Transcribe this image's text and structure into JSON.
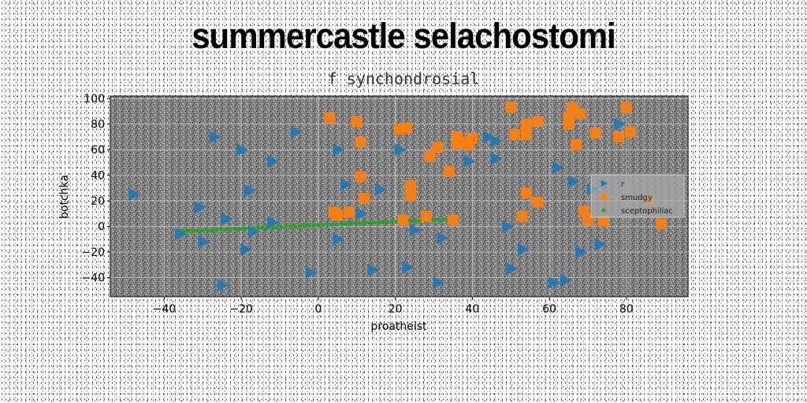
{
  "title": "summercastle selachostomi",
  "subtitle": "f synchondrosial",
  "chart_data": {
    "type": "scatter",
    "xlabel": "proatheist",
    "ylabel": "botchka",
    "xlim": [
      -54,
      96
    ],
    "ylim": [
      -55,
      102
    ],
    "xticks": [
      -40,
      -20,
      0,
      20,
      40,
      60,
      80
    ],
    "yticks": [
      -40,
      -20,
      0,
      20,
      40,
      60,
      80,
      100
    ],
    "grid": true,
    "legend_position": "right",
    "background": "#808080",
    "series": [
      {
        "name": "r",
        "color": "#1f77b4",
        "marker": "triangle-right",
        "points": [
          [
            -48,
            25
          ],
          [
            -36,
            -6
          ],
          [
            -30,
            -12
          ],
          [
            -31,
            15
          ],
          [
            -27,
            70
          ],
          [
            -24,
            6
          ],
          [
            -25,
            -46
          ],
          [
            -20,
            60
          ],
          [
            -18,
            28
          ],
          [
            -19,
            -18
          ],
          [
            -17,
            -4
          ],
          [
            -12,
            51
          ],
          [
            -12,
            3
          ],
          [
            -6,
            74
          ],
          [
            -2,
            -36
          ],
          [
            5,
            60
          ],
          [
            5,
            -10
          ],
          [
            7,
            33
          ],
          [
            11,
            10
          ],
          [
            14,
            -34
          ],
          [
            16,
            29
          ],
          [
            21,
            60
          ],
          [
            23,
            -32
          ],
          [
            25,
            -3
          ],
          [
            31,
            -44
          ],
          [
            32,
            -9
          ],
          [
            39,
            51
          ],
          [
            44,
            70
          ],
          [
            46,
            67
          ],
          [
            46,
            53
          ],
          [
            49,
            0
          ],
          [
            50,
            -33
          ],
          [
            53,
            -18
          ],
          [
            62,
            46
          ],
          [
            61,
            -44
          ],
          [
            64,
            -42
          ],
          [
            66,
            35
          ],
          [
            68,
            -20
          ],
          [
            71,
            29
          ],
          [
            73,
            -14
          ],
          [
            78,
            80
          ]
        ]
      },
      {
        "name": "smudgy",
        "color": "#ff7f0e",
        "marker": "square",
        "points": [
          [
            3,
            85
          ],
          [
            5,
            9
          ],
          [
            4,
            11
          ],
          [
            8,
            11
          ],
          [
            10,
            82
          ],
          [
            11,
            66
          ],
          [
            11,
            39
          ],
          [
            12,
            22
          ],
          [
            21,
            76
          ],
          [
            22,
            5
          ],
          [
            23,
            77
          ],
          [
            24,
            32
          ],
          [
            24,
            24
          ],
          [
            28,
            8
          ],
          [
            29,
            55
          ],
          [
            31,
            62
          ],
          [
            34,
            43
          ],
          [
            36,
            65
          ],
          [
            36,
            70
          ],
          [
            37,
            66
          ],
          [
            39,
            64
          ],
          [
            40,
            69
          ],
          [
            35,
            5
          ],
          [
            50,
            93
          ],
          [
            51,
            72
          ],
          [
            53,
            8
          ],
          [
            54,
            80
          ],
          [
            54,
            72
          ],
          [
            54,
            26
          ],
          [
            57,
            82
          ],
          [
            57,
            19
          ],
          [
            65,
            85
          ],
          [
            65,
            80
          ],
          [
            66,
            93
          ],
          [
            67,
            64
          ],
          [
            68,
            88
          ],
          [
            69,
            12
          ],
          [
            70,
            5
          ],
          [
            72,
            73
          ],
          [
            74,
            4
          ],
          [
            80,
            93
          ],
          [
            81,
            74
          ],
          [
            78,
            70
          ],
          [
            86,
            20
          ],
          [
            89,
            2
          ]
        ]
      },
      {
        "name": "sceptophiliac",
        "color": "#2ca02c",
        "marker": "circle",
        "line_from": [
          -36,
          -4
        ],
        "line_to": [
          36,
          6
        ]
      }
    ]
  }
}
